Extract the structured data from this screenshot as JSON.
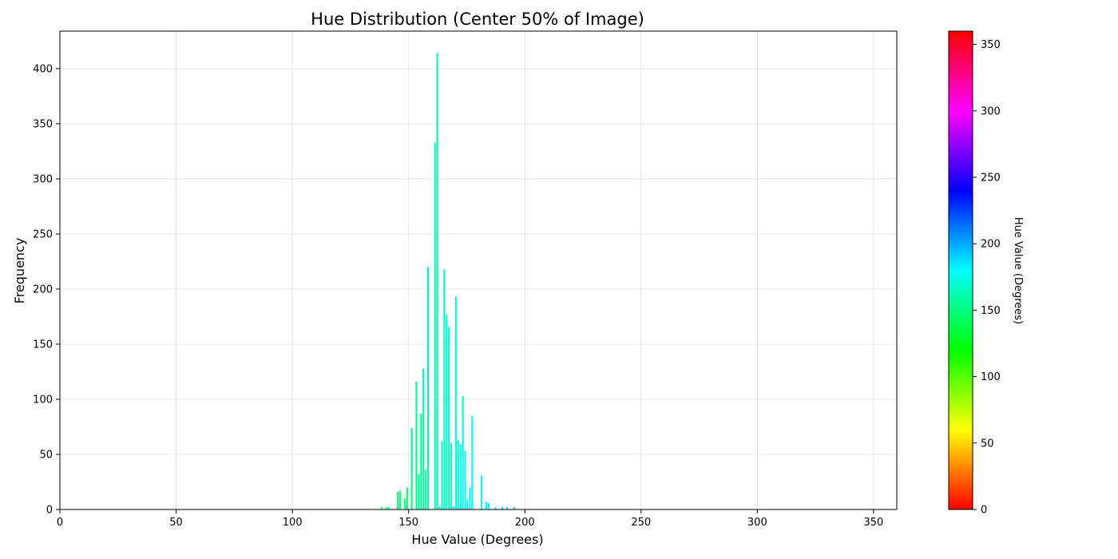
{
  "chart_data": {
    "type": "bar",
    "title": "Hue Distribution (Center 50% of Image)",
    "xlabel": "Hue Value (Degrees)",
    "ylabel": "Frequency",
    "xlim": [
      0,
      360
    ],
    "ylim": [
      0,
      434
    ],
    "xticks": [
      0,
      50,
      100,
      150,
      200,
      250,
      300,
      350
    ],
    "yticks": [
      0,
      50,
      100,
      150,
      200,
      250,
      300,
      350,
      400
    ],
    "grid": true,
    "bin_width": 1,
    "bars_colored_by": "hue",
    "x": [
      138,
      140,
      141,
      145,
      146,
      148,
      149,
      151,
      153,
      154,
      155,
      156,
      157,
      158,
      161,
      162,
      163,
      164,
      165,
      166,
      167,
      168,
      169,
      170,
      171,
      172,
      173,
      174,
      175,
      176,
      177,
      181,
      183,
      184,
      187,
      190,
      192,
      195
    ],
    "values": [
      2,
      2,
      2,
      16,
      17,
      10,
      20,
      74,
      116,
      32,
      87,
      128,
      36,
      220,
      333,
      414,
      3,
      62,
      218,
      177,
      166,
      60,
      3,
      193,
      63,
      59,
      103,
      53,
      9,
      20,
      85,
      31,
      7,
      6,
      2,
      2,
      2,
      2
    ],
    "colorbar": {
      "label": "Hue Value (Degrees)",
      "range": [
        0,
        360
      ],
      "ticks": [
        0,
        50,
        100,
        150,
        200,
        250,
        300,
        350
      ],
      "colormap": "hsv"
    }
  }
}
